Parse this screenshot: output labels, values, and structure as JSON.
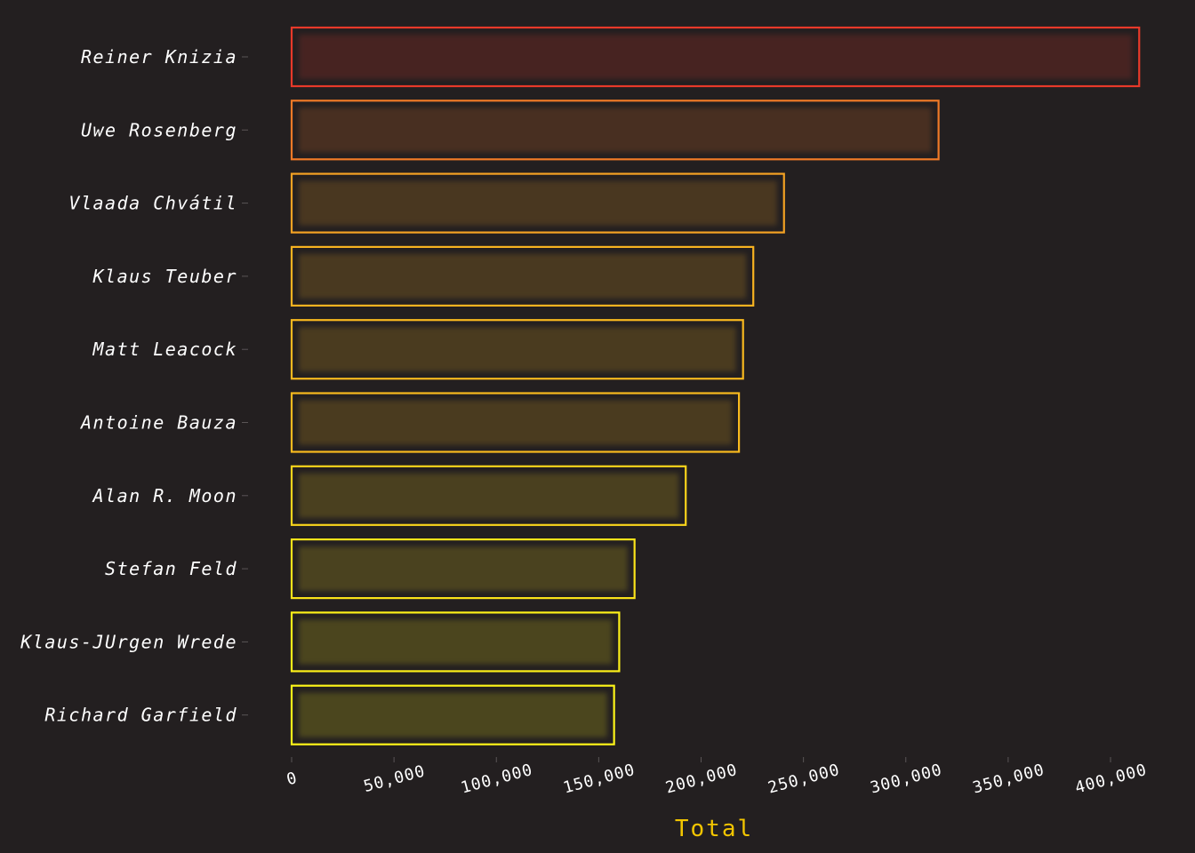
{
  "chart_data": {
    "type": "bar",
    "orientation": "horizontal",
    "categories": [
      "Reiner Knizia",
      "Uwe Rosenberg",
      "Vlaada Chvátil",
      "Klaus Teuber",
      "Matt Leacock",
      "Antoine Bauza",
      "Alan R. Moon",
      "Stefan Feld",
      "Klaus-JUrgen Wrede",
      "Richard Garfield"
    ],
    "values": [
      414000,
      316000,
      240500,
      225500,
      220500,
      218500,
      192500,
      167500,
      160000,
      157500
    ],
    "colors": [
      "#e8392a",
      "#f07a27",
      "#f4a223",
      "#f7b220",
      "#f8b81f",
      "#f9ba1e",
      "#fad41b",
      "#fbe31a",
      "#fdf018",
      "#fdf518"
    ],
    "xlabel": "Total",
    "ylabel": "",
    "xlim": [
      0,
      400000
    ],
    "xticks": [
      0,
      50000,
      100000,
      150000,
      200000,
      250000,
      300000,
      350000,
      400000
    ],
    "xtick_labels": [
      "0",
      "50,000",
      "100,000",
      "150,000",
      "200,000",
      "250,000",
      "300,000",
      "350,000",
      "400,000"
    ],
    "grid": false,
    "background": "#231f20",
    "axis_title_color": "#f2c500"
  }
}
